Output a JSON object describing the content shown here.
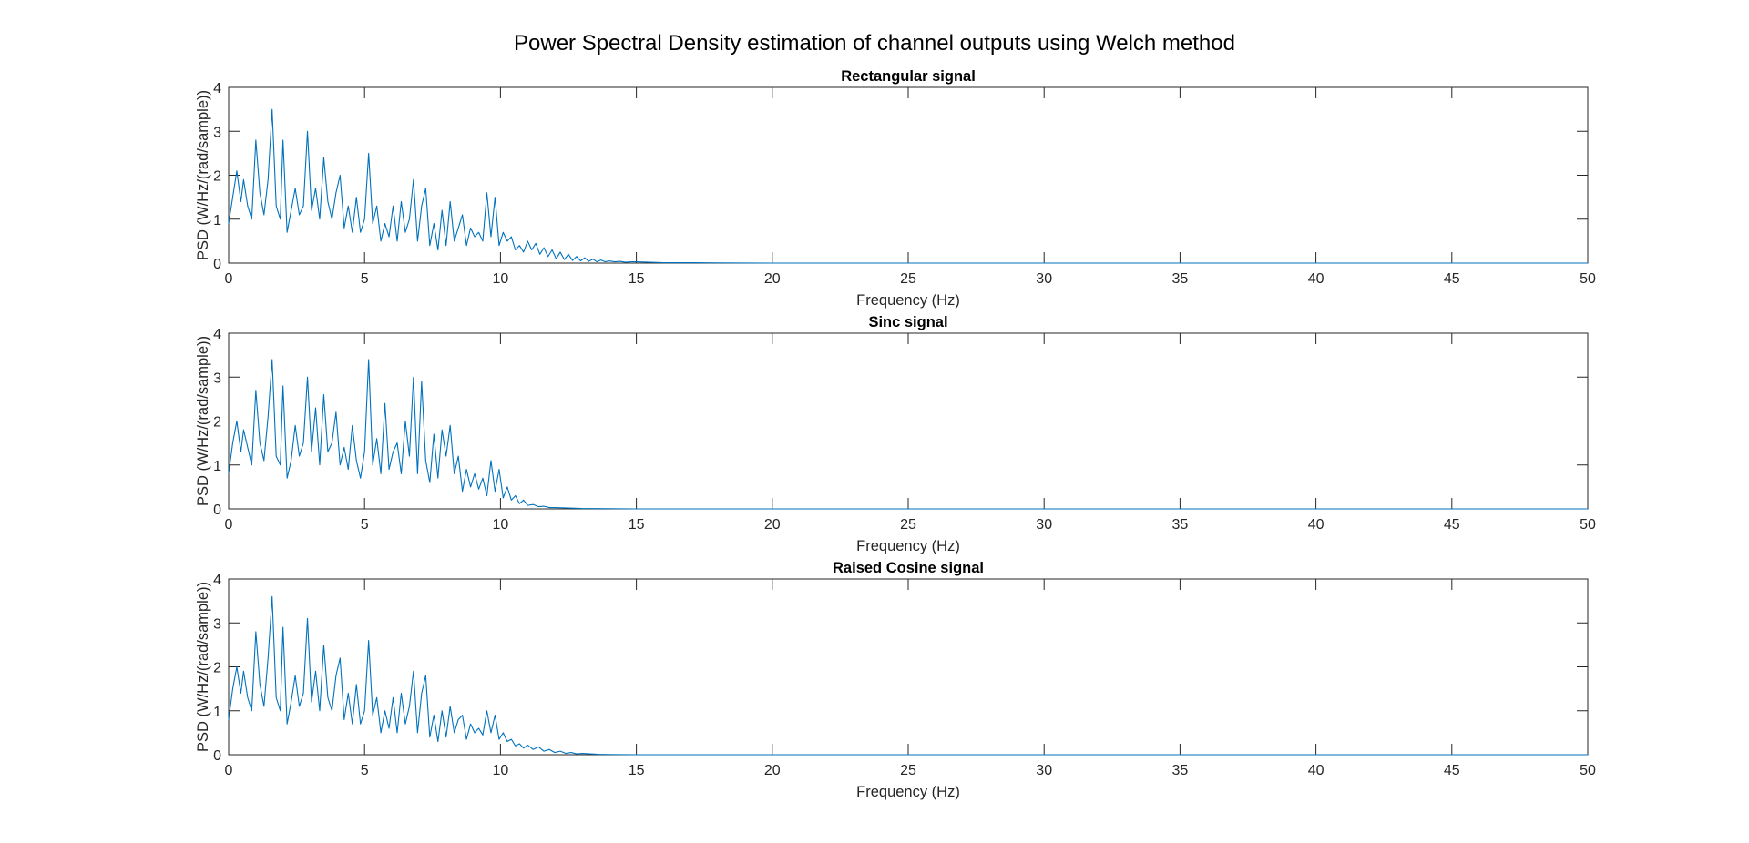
{
  "figure": {
    "title": "Power Spectral Density estimation of channel outputs using Welch method"
  },
  "colors": {
    "line": "#0072bd",
    "axes": "#262626",
    "background": "#ffffff"
  },
  "chart_data": [
    {
      "type": "line",
      "title": "Rectangular signal",
      "xlabel": "Frequency (Hz)",
      "ylabel": "PSD (W/Hz/(rad/sample))",
      "xlim": [
        0,
        50
      ],
      "ylim": [
        0,
        4
      ],
      "xticks": [
        "0",
        "5",
        "10",
        "15",
        "20",
        "25",
        "30",
        "35",
        "40",
        "45",
        "50"
      ],
      "yticks": [
        "0",
        "1",
        "2",
        "3",
        "4"
      ],
      "grid": false,
      "series": [
        {
          "x": [
            0,
            0.15,
            0.3,
            0.45,
            0.55,
            0.7,
            0.85,
            1.0,
            1.15,
            1.3,
            1.45,
            1.6,
            1.75,
            1.9,
            2.0,
            2.15,
            2.3,
            2.45,
            2.6,
            2.75,
            2.9,
            3.05,
            3.2,
            3.35,
            3.5,
            3.65,
            3.8,
            3.95,
            4.1,
            4.25,
            4.4,
            4.55,
            4.7,
            4.85,
            5.0,
            5.15,
            5.3,
            5.45,
            5.6,
            5.75,
            5.9,
            6.05,
            6.2,
            6.35,
            6.5,
            6.65,
            6.8,
            6.95,
            7.1,
            7.25,
            7.4,
            7.55,
            7.7,
            7.85,
            8.0,
            8.15,
            8.3,
            8.45,
            8.6,
            8.75,
            8.9,
            9.05,
            9.2,
            9.35,
            9.5,
            9.65,
            9.8,
            9.95,
            10.1,
            10.25,
            10.4,
            10.55,
            10.7,
            10.85,
            11.0,
            11.15,
            11.3,
            11.45,
            11.6,
            11.75,
            11.9,
            12.05,
            12.2,
            12.35,
            12.5,
            12.65,
            12.8,
            12.95,
            13.1,
            13.25,
            13.4,
            13.55,
            13.7,
            13.85,
            14.0,
            14.2,
            14.4,
            14.6,
            14.8,
            15.0,
            15.5,
            16,
            17,
            18,
            20,
            25,
            30,
            35,
            40,
            45,
            50
          ],
          "y": [
            0.9,
            1.5,
            2.1,
            1.4,
            1.9,
            1.3,
            1.0,
            2.8,
            1.6,
            1.1,
            1.9,
            3.5,
            1.3,
            1.0,
            2.8,
            0.7,
            1.2,
            1.7,
            1.1,
            1.3,
            3.0,
            1.2,
            1.7,
            1.0,
            2.4,
            1.4,
            1.0,
            1.6,
            2.0,
            0.8,
            1.3,
            0.7,
            1.5,
            0.7,
            1.0,
            2.5,
            0.9,
            1.3,
            0.5,
            0.9,
            0.6,
            1.3,
            0.5,
            1.4,
            0.7,
            1.0,
            1.9,
            0.5,
            1.3,
            1.7,
            0.4,
            0.9,
            0.3,
            1.2,
            0.4,
            1.4,
            0.5,
            0.8,
            1.1,
            0.4,
            0.8,
            0.6,
            0.7,
            0.5,
            1.6,
            0.6,
            1.5,
            0.4,
            0.7,
            0.5,
            0.6,
            0.3,
            0.4,
            0.25,
            0.5,
            0.3,
            0.45,
            0.2,
            0.35,
            0.15,
            0.3,
            0.1,
            0.25,
            0.08,
            0.2,
            0.06,
            0.15,
            0.05,
            0.12,
            0.04,
            0.09,
            0.03,
            0.07,
            0.03,
            0.05,
            0.03,
            0.04,
            0.02,
            0.03,
            0.03,
            0.02,
            0.01,
            0.01,
            0.005,
            0.0,
            0.0,
            0.0,
            0.0,
            0.0,
            0.0,
            0.0
          ]
        }
      ]
    },
    {
      "type": "line",
      "title": "Sinc signal",
      "xlabel": "Frequency (Hz)",
      "ylabel": "PSD (W/Hz/(rad/sample))",
      "xlim": [
        0,
        50
      ],
      "ylim": [
        0,
        4
      ],
      "xticks": [
        "0",
        "5",
        "10",
        "15",
        "20",
        "25",
        "30",
        "35",
        "40",
        "45",
        "50"
      ],
      "yticks": [
        "0",
        "1",
        "2",
        "3",
        "4"
      ],
      "grid": false,
      "series": [
        {
          "x": [
            0,
            0.15,
            0.3,
            0.45,
            0.55,
            0.7,
            0.85,
            1.0,
            1.15,
            1.3,
            1.45,
            1.6,
            1.75,
            1.9,
            2.0,
            2.15,
            2.3,
            2.45,
            2.6,
            2.75,
            2.9,
            3.05,
            3.2,
            3.35,
            3.5,
            3.65,
            3.8,
            3.95,
            4.1,
            4.25,
            4.4,
            4.55,
            4.7,
            4.85,
            5.0,
            5.15,
            5.3,
            5.45,
            5.6,
            5.75,
            5.9,
            6.05,
            6.2,
            6.35,
            6.5,
            6.65,
            6.8,
            6.95,
            7.1,
            7.25,
            7.4,
            7.55,
            7.7,
            7.85,
            8.0,
            8.15,
            8.3,
            8.45,
            8.6,
            8.75,
            8.9,
            9.05,
            9.2,
            9.35,
            9.5,
            9.65,
            9.8,
            9.95,
            10.1,
            10.25,
            10.4,
            10.55,
            10.7,
            10.85,
            11.0,
            11.2,
            11.4,
            11.6,
            11.8,
            12.0,
            12.5,
            13,
            14,
            15,
            20,
            25,
            30,
            35,
            40,
            45,
            50
          ],
          "y": [
            0.8,
            1.5,
            2.0,
            1.3,
            1.8,
            1.4,
            1.0,
            2.7,
            1.5,
            1.1,
            2.1,
            3.4,
            1.2,
            1.0,
            2.8,
            0.7,
            1.1,
            1.9,
            1.2,
            1.5,
            3.0,
            1.3,
            2.3,
            1.0,
            2.6,
            1.3,
            1.5,
            2.2,
            1.0,
            1.4,
            0.9,
            1.9,
            1.1,
            0.7,
            1.3,
            3.4,
            1.0,
            1.6,
            0.8,
            2.4,
            0.9,
            1.3,
            1.5,
            0.8,
            2.0,
            1.2,
            3.0,
            0.8,
            2.9,
            1.1,
            0.6,
            1.7,
            0.7,
            1.8,
            1.2,
            1.9,
            0.8,
            1.2,
            0.4,
            0.9,
            0.5,
            0.8,
            0.45,
            0.7,
            0.3,
            1.1,
            0.4,
            0.9,
            0.25,
            0.5,
            0.2,
            0.3,
            0.12,
            0.2,
            0.08,
            0.1,
            0.05,
            0.06,
            0.03,
            0.03,
            0.02,
            0.01,
            0.005,
            0.0,
            0.0,
            0.0,
            0.0,
            0.0,
            0.0,
            0.0,
            0.0
          ]
        }
      ]
    },
    {
      "type": "line",
      "title": "Raised Cosine signal",
      "xlabel": "Frequency (Hz)",
      "ylabel": "PSD (W/Hz/(rad/sample))",
      "xlim": [
        0,
        50
      ],
      "ylim": [
        0,
        4
      ],
      "xticks": [
        "0",
        "5",
        "10",
        "15",
        "20",
        "25",
        "30",
        "35",
        "40",
        "45",
        "50"
      ],
      "yticks": [
        "0",
        "1",
        "2",
        "3",
        "4"
      ],
      "grid": false,
      "series": [
        {
          "x": [
            0,
            0.15,
            0.3,
            0.45,
            0.55,
            0.7,
            0.85,
            1.0,
            1.15,
            1.3,
            1.45,
            1.6,
            1.75,
            1.9,
            2.0,
            2.15,
            2.3,
            2.45,
            2.6,
            2.75,
            2.9,
            3.05,
            3.2,
            3.35,
            3.5,
            3.65,
            3.8,
            3.95,
            4.1,
            4.25,
            4.4,
            4.55,
            4.7,
            4.85,
            5.0,
            5.15,
            5.3,
            5.45,
            5.6,
            5.75,
            5.9,
            6.05,
            6.2,
            6.35,
            6.5,
            6.65,
            6.8,
            6.95,
            7.1,
            7.25,
            7.4,
            7.55,
            7.7,
            7.85,
            8.0,
            8.15,
            8.3,
            8.45,
            8.6,
            8.75,
            8.9,
            9.05,
            9.2,
            9.35,
            9.5,
            9.65,
            9.8,
            9.95,
            10.1,
            10.25,
            10.4,
            10.55,
            10.7,
            10.85,
            11.0,
            11.2,
            11.4,
            11.6,
            11.8,
            12.0,
            12.2,
            12.4,
            12.6,
            12.8,
            13.0,
            13.3,
            13.6,
            14,
            15,
            20,
            25,
            30,
            35,
            40,
            45,
            50
          ],
          "y": [
            0.8,
            1.5,
            2.0,
            1.4,
            1.9,
            1.3,
            1.0,
            2.8,
            1.6,
            1.1,
            2.2,
            3.6,
            1.3,
            1.0,
            2.9,
            0.7,
            1.2,
            1.8,
            1.1,
            1.4,
            3.1,
            1.2,
            1.9,
            1.0,
            2.5,
            1.3,
            1.0,
            1.8,
            2.2,
            0.8,
            1.4,
            0.7,
            1.6,
            0.7,
            1.0,
            2.6,
            0.9,
            1.3,
            0.5,
            1.0,
            0.6,
            1.3,
            0.5,
            1.4,
            0.7,
            1.1,
            1.9,
            0.5,
            1.4,
            1.8,
            0.4,
            0.9,
            0.3,
            1.0,
            0.4,
            1.1,
            0.5,
            0.8,
            0.9,
            0.35,
            0.7,
            0.5,
            0.6,
            0.45,
            1.0,
            0.5,
            0.9,
            0.35,
            0.5,
            0.3,
            0.35,
            0.2,
            0.25,
            0.15,
            0.22,
            0.12,
            0.18,
            0.08,
            0.12,
            0.05,
            0.08,
            0.03,
            0.05,
            0.02,
            0.03,
            0.02,
            0.01,
            0.005,
            0.0,
            0.0,
            0.0,
            0.0,
            0.0,
            0.0,
            0.0,
            0.0
          ]
        }
      ]
    }
  ]
}
